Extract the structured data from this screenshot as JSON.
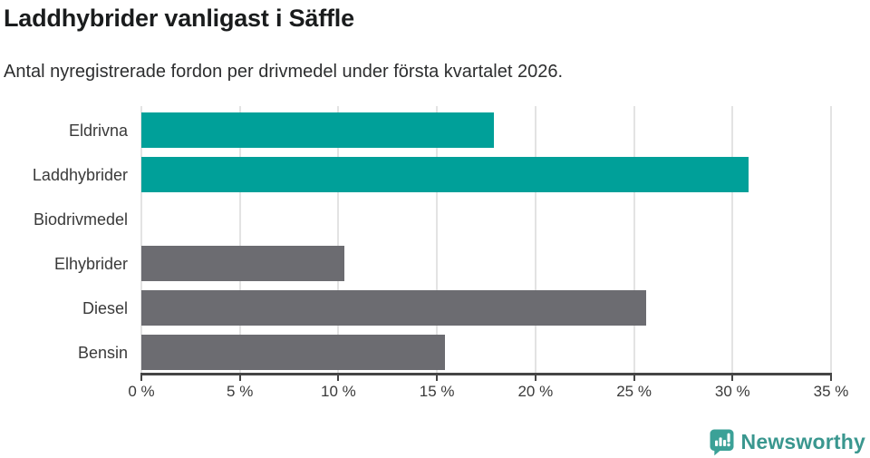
{
  "header": {
    "title": "Laddhybrider vanligast i Säffle",
    "subtitle": "Antal nyregistrerade fordon per drivmedel under första kvartalet 2026."
  },
  "chart_data": {
    "type": "bar",
    "orientation": "horizontal",
    "title": "Laddhybrider vanligast i Säffle",
    "subtitle": "Antal nyregistrerade fordon per drivmedel under första kvartalet 2026.",
    "categories": [
      "Eldrivna",
      "Laddhybrider",
      "Biodrivmedel",
      "Elhybrider",
      "Diesel",
      "Bensin"
    ],
    "values": [
      17.9,
      30.8,
      0,
      10.3,
      25.6,
      15.4
    ],
    "unit": "%",
    "bar_colors": [
      "#00a099",
      "#00a099",
      "#6c6c71",
      "#6c6c71",
      "#6c6c71",
      "#6c6c71"
    ],
    "xlabel": "",
    "ylabel": "",
    "xlim": [
      0,
      35
    ],
    "xticks": [
      0,
      5,
      10,
      15,
      20,
      25,
      30,
      35
    ],
    "xtick_labels": [
      "0 %",
      "5 %",
      "10 %",
      "15 %",
      "20 %",
      "25 %",
      "30 %",
      "35 %"
    ],
    "grid": "vertical-only",
    "legend": "none",
    "colors": {
      "highlight": "#00a099",
      "default": "#6c6c71",
      "gridline": "#e3e3e3",
      "axis": "#454545",
      "text": "#3a3a3a"
    }
  },
  "footer": {
    "brand": "Newsworthy",
    "brand_color": "#3a978f",
    "logo_icon": "newsworthy-speech-bubble-bar-chart-icon",
    "logo_icon_color": "#3ba197"
  }
}
